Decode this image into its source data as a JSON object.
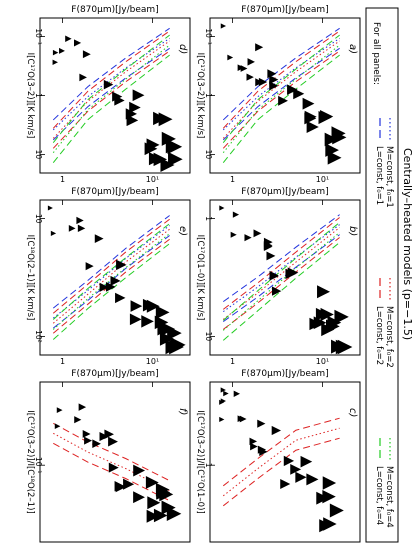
{
  "figure": {
    "title": "Centrally–heated models (p=−1.5)",
    "legend": {
      "heading": "For all panels:",
      "entries": [
        {
          "label": "L=const, f₀=1",
          "color": "#2233dd",
          "dash": "8 4"
        },
        {
          "label": "M=const, f₀=1",
          "color": "#2233dd",
          "dash": "1.5 2.5"
        },
        {
          "label": "L=const, f₀=2",
          "color": "#dd2222",
          "dash": "8 4"
        },
        {
          "label": "M=const, f₀=2",
          "color": "#dd2222",
          "dash": "1.5 2.5"
        },
        {
          "label": "L=const, f₀=4",
          "color": "#22cc22",
          "dash": "8 4"
        },
        {
          "label": "M=const, f₀=4",
          "color": "#22cc22",
          "dash": "1.5 2.5"
        }
      ]
    }
  },
  "chart_data": [
    {
      "type": "scatter",
      "panel": "a",
      "xlabel": "F(870μm)[Jy/beam]",
      "ylabel": "I[C¹⁷O(3–2)][K km/s]",
      "xscale": "log",
      "yscale": "log",
      "xticks": [
        "1",
        "10¹"
      ],
      "yticks": [
        "10⁻¹",
        "1",
        "10"
      ],
      "series": [
        {
          "color": "#2233dd",
          "values": [
            [
              1.0,
              0.3
            ],
            [
              3,
              1.5
            ],
            [
              10,
              6
            ],
            [
              40,
              25
            ]
          ]
        },
        {
          "color": "#dd2222",
          "values": [
            [
              1.0,
              0.2
            ],
            [
              3,
              1.2
            ],
            [
              10,
              5
            ],
            [
              40,
              22
            ]
          ]
        },
        {
          "color": "#22cc22",
          "values": [
            [
              1.0,
              0.1
            ],
            [
              3,
              0.8
            ],
            [
              10,
              3.5
            ],
            [
              40,
              18
            ]
          ]
        }
      ]
    },
    {
      "type": "scatter",
      "panel": "b",
      "xlabel": "F(870μm)[Jy/beam]",
      "ylabel": "I[C¹⁷O(1–0)][K km/s]",
      "xscale": "log",
      "yscale": "log",
      "xticks": [
        "1",
        "10¹"
      ],
      "yticks": [
        "1",
        "10"
      ],
      "series": [
        {
          "color": "#2233dd",
          "values": [
            [
              1.0,
              0.8
            ],
            [
              3,
              2
            ],
            [
              10,
              6
            ],
            [
              40,
              20
            ]
          ]
        },
        {
          "color": "#dd2222",
          "values": [
            [
              1.0,
              0.6
            ],
            [
              3,
              1.6
            ],
            [
              10,
              5
            ],
            [
              40,
              18
            ]
          ]
        },
        {
          "color": "#22cc22",
          "values": [
            [
              1.0,
              0.4
            ],
            [
              3,
              1.2
            ],
            [
              10,
              4
            ],
            [
              40,
              15
            ]
          ]
        }
      ]
    },
    {
      "type": "scatter",
      "panel": "c",
      "xlabel": "F(870μm)[Jy/beam]",
      "ylabel": "I[C¹⁷O(3–2)]/I[C¹⁷O(1–0)]",
      "xscale": "log",
      "yscale": "log",
      "xticks": [
        "1",
        "10¹"
      ],
      "yticks": [
        "1"
      ],
      "series": [
        {
          "color": "#dd2222",
          "values": [
            [
              1.0,
              0.5
            ],
            [
              3,
              0.8
            ],
            [
              10,
              1.3
            ],
            [
              40,
              1.6
            ]
          ]
        }
      ]
    },
    {
      "type": "scatter",
      "panel": "d",
      "xlabel": "F(870μm)[Jy/beam]",
      "ylabel": "I[C¹⁷O(3–2)][K km/s]",
      "xscale": "log",
      "yscale": "log",
      "xticks": [
        "1",
        "10¹"
      ],
      "yticks": [
        "10⁻¹",
        "1",
        "10"
      ],
      "series": [
        {
          "color": "#2233dd",
          "values": [
            [
              1.0,
              0.3
            ],
            [
              3,
              1.5
            ],
            [
              10,
              6
            ],
            [
              40,
              25
            ]
          ]
        },
        {
          "color": "#dd2222",
          "values": [
            [
              1.0,
              0.2
            ],
            [
              3,
              1.2
            ],
            [
              10,
              5
            ],
            [
              40,
              22
            ]
          ]
        },
        {
          "color": "#22cc22",
          "values": [
            [
              1.0,
              0.1
            ],
            [
              3,
              0.8
            ],
            [
              10,
              3.5
            ],
            [
              40,
              18
            ]
          ]
        }
      ]
    },
    {
      "type": "scatter",
      "panel": "e",
      "xlabel": "F(870μm)[Jy/beam]",
      "ylabel": "I[C¹⁸O(2–1)][K km/s]",
      "xscale": "log",
      "yscale": "log",
      "xticks": [
        "1",
        "10¹"
      ],
      "yticks": [
        "10",
        "10²"
      ],
      "series": [
        {
          "color": "#2233dd",
          "values": [
            [
              1.0,
              3
            ],
            [
              3,
              8
            ],
            [
              10,
              25
            ],
            [
              40,
              80
            ]
          ]
        },
        {
          "color": "#dd2222",
          "values": [
            [
              1.0,
              2.5
            ],
            [
              3,
              7
            ],
            [
              10,
              22
            ],
            [
              40,
              70
            ]
          ]
        },
        {
          "color": "#22cc22",
          "values": [
            [
              1.0,
              2
            ],
            [
              3,
              6
            ],
            [
              10,
              18
            ],
            [
              40,
              60
            ]
          ]
        }
      ]
    },
    {
      "type": "scatter",
      "panel": "f",
      "xlabel": "F(870μm)[Jy/beam]",
      "ylabel": "I[C¹⁷O(3–2)]/I[C¹⁸O(2–1)]",
      "xscale": "log",
      "yscale": "log",
      "xticks": [
        "1",
        "10¹"
      ],
      "yticks": [
        "10⁻¹"
      ],
      "series": [
        {
          "color": "#dd2222",
          "values": [
            [
              1.0,
              0.12
            ],
            [
              3,
              0.09
            ],
            [
              10,
              0.07
            ],
            [
              40,
              0.05
            ]
          ]
        }
      ]
    }
  ]
}
